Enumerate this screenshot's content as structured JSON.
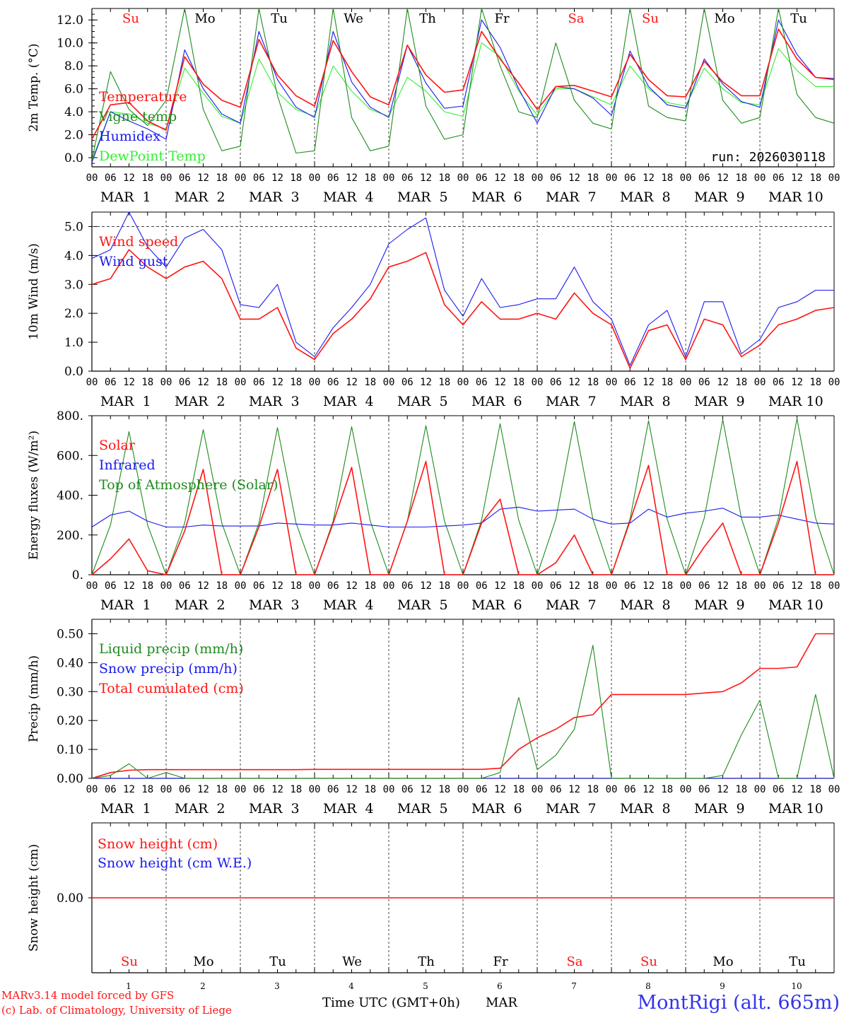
{
  "colors": {
    "red": "#ff1414",
    "green": "#1e8c1e",
    "blue": "#1a1aee",
    "lightgreen": "#33ee33",
    "grid": "#444444",
    "axis": "#000000",
    "footer_blue": "#3333ee"
  },
  "days": {
    "weekday_labels": [
      "Su",
      "Mo",
      "Tu",
      "We",
      "Th",
      "Fr",
      "Sa",
      "Su",
      "Mo",
      "Tu"
    ],
    "weekend_flags": [
      true,
      false,
      false,
      false,
      false,
      false,
      true,
      true,
      false,
      false
    ],
    "date_labels": [
      "MAR  1",
      "MAR  2",
      "MAR  3",
      "MAR  4",
      "MAR  5",
      "MAR  6",
      "MAR  7",
      "MAR  8",
      "MAR  9",
      "MAR 10"
    ],
    "day_numbers": [
      "1",
      "2",
      "3",
      "4",
      "5",
      "6",
      "7",
      "8",
      "9",
      "10"
    ],
    "hour_labels": [
      "00",
      "06",
      "12",
      "18"
    ],
    "final_hour_label": "00"
  },
  "footer": {
    "model": "MARv3.14 model forced by GFS",
    "lab": "(c) Lab. of Climatology, University of Liege",
    "axis_title": "Time UTC (GMT+0h)",
    "month": "MAR",
    "station": "MontRigi (alt. 665m)"
  },
  "chart_data": [
    {
      "type": "line",
      "ylabel": "2m Temp. (°C)",
      "ylim": [
        -0.8,
        13.0
      ],
      "yticks": [
        "0.0",
        "2.0",
        "4.0",
        "6.0",
        "8.0",
        "10.0",
        "12.0"
      ],
      "annotation": "run: 2026030118",
      "x": "hours since MAR 1 00 UTC, every 6 h",
      "series": [
        {
          "name": "Temperature",
          "color": "red",
          "values": [
            1.6,
            4.6,
            4.8,
            3.2,
            2.4,
            8.8,
            6.4,
            5.0,
            4.4,
            10.3,
            7.2,
            5.4,
            4.5,
            10.2,
            7.5,
            5.3,
            4.6,
            9.8,
            7.2,
            5.7,
            5.9,
            11.0,
            8.6,
            6.5,
            4.2,
            6.2,
            6.3,
            5.8,
            5.3,
            9.0,
            6.8,
            5.4,
            5.3,
            8.4,
            6.6,
            5.4,
            5.4,
            11.2,
            8.6,
            7.0,
            6.8
          ]
        },
        {
          "name": "Vigne temp",
          "color": "green",
          "values": [
            -0.2,
            7.5,
            4.2,
            2.8,
            5.0,
            13.0,
            4.2,
            0.6,
            1.0,
            13.0,
            5.4,
            0.4,
            0.6,
            13.0,
            3.5,
            0.6,
            1.0,
            13.0,
            4.5,
            1.6,
            2.0,
            13.0,
            8.0,
            4.0,
            3.5,
            10.0,
            5.0,
            3.0,
            2.5,
            13.0,
            4.5,
            3.5,
            3.2,
            13.0,
            5.0,
            3.0,
            3.5,
            13.0,
            5.5,
            3.5,
            3.0
          ]
        },
        {
          "name": "Humidex",
          "color": "blue",
          "values": [
            -0.4,
            4.0,
            3.2,
            2.5,
            1.6,
            9.4,
            6.0,
            3.8,
            3.0,
            11.0,
            6.8,
            4.4,
            3.5,
            11.0,
            6.6,
            4.4,
            3.5,
            9.8,
            6.5,
            4.3,
            4.5,
            12.0,
            9.6,
            6.0,
            3.0,
            6.2,
            6.0,
            5.2,
            3.7,
            9.3,
            6.2,
            4.6,
            4.3,
            8.6,
            6.4,
            4.9,
            4.4,
            12.0,
            9.0,
            7.0,
            6.9
          ]
        },
        {
          "name": "DewPoint Temp",
          "color": "lightgreen",
          "values": [
            -0.2,
            4.0,
            3.8,
            3.0,
            2.5,
            7.8,
            5.6,
            3.6,
            3.0,
            8.6,
            5.7,
            4.2,
            3.6,
            8.0,
            5.8,
            4.2,
            3.6,
            7.0,
            5.8,
            4.0,
            3.6,
            10.0,
            8.8,
            5.8,
            3.7,
            6.0,
            6.0,
            5.3,
            4.6,
            8.0,
            6.0,
            4.8,
            4.5,
            7.8,
            6.0,
            4.8,
            4.6,
            9.5,
            7.6,
            6.2,
            6.2
          ]
        }
      ]
    },
    {
      "type": "line",
      "ylabel": "10m Wind (m/s)",
      "ylim": [
        0.0,
        5.5
      ],
      "yticks": [
        "0.0",
        "1.0",
        "2.0",
        "3.0",
        "4.0",
        "5.0"
      ],
      "x": "hours since MAR 1 00 UTC, every 6 h",
      "series": [
        {
          "name": "Wind speed",
          "color": "red",
          "values": [
            3.0,
            3.2,
            4.2,
            3.6,
            3.2,
            3.6,
            3.8,
            3.2,
            1.8,
            1.8,
            2.2,
            0.8,
            0.4,
            1.3,
            1.8,
            2.5,
            3.6,
            3.8,
            4.1,
            2.3,
            1.6,
            2.4,
            1.8,
            1.8,
            2.0,
            1.8,
            2.7,
            2.0,
            1.6,
            0.1,
            1.4,
            1.6,
            0.4,
            1.8,
            1.6,
            0.5,
            0.9,
            1.6,
            1.8,
            2.1,
            2.2
          ]
        },
        {
          "name": "Wind gust",
          "color": "blue",
          "values": [
            3.9,
            4.2,
            5.5,
            4.3,
            3.6,
            4.6,
            4.9,
            4.2,
            2.3,
            2.2,
            3.0,
            1.0,
            0.5,
            1.5,
            2.2,
            3.0,
            4.4,
            4.9,
            5.3,
            2.8,
            1.9,
            3.2,
            2.2,
            2.3,
            2.5,
            2.5,
            3.6,
            2.4,
            1.8,
            0.2,
            1.6,
            2.1,
            0.5,
            2.4,
            2.4,
            0.6,
            1.1,
            2.2,
            2.4,
            2.8,
            2.8
          ]
        }
      ]
    },
    {
      "type": "line",
      "ylabel": "Energy fluxes (W/m²)",
      "ylim": [
        0,
        800
      ],
      "yticks": [
        "0.",
        "200.",
        "400.",
        "600.",
        "800."
      ],
      "x": "hours since MAR 1 00 UTC, every 6 h",
      "series": [
        {
          "name": "Solar",
          "color": "red",
          "values": [
            0,
            80,
            180,
            20,
            0,
            220,
            530,
            0,
            0,
            240,
            530,
            0,
            0,
            260,
            540,
            0,
            0,
            270,
            570,
            0,
            0,
            260,
            380,
            0,
            0,
            60,
            200,
            0,
            0,
            270,
            550,
            0,
            0,
            140,
            260,
            0,
            0,
            260,
            570,
            0,
            0
          ]
        },
        {
          "name": "Infrared",
          "color": "blue",
          "values": [
            240,
            300,
            320,
            270,
            240,
            240,
            250,
            245,
            245,
            245,
            260,
            255,
            250,
            250,
            260,
            250,
            240,
            240,
            240,
            245,
            250,
            260,
            330,
            340,
            320,
            325,
            330,
            280,
            255,
            260,
            330,
            290,
            310,
            320,
            335,
            290,
            290,
            300,
            280,
            260,
            255
          ]
        },
        {
          "name": "Top of Atmosphere (Solar)",
          "color": "green",
          "values": [
            0,
            250,
            720,
            250,
            0,
            260,
            730,
            260,
            0,
            260,
            740,
            260,
            0,
            270,
            745,
            270,
            0,
            270,
            750,
            270,
            0,
            275,
            760,
            275,
            0,
            280,
            770,
            280,
            0,
            280,
            775,
            280,
            0,
            285,
            780,
            285,
            0,
            285,
            785,
            285,
            0
          ]
        }
      ]
    },
    {
      "type": "line",
      "ylabel": "Precip (mm/h)",
      "ylim": [
        0,
        0.55
      ],
      "yticks": [
        "0.00",
        "0.10",
        "0.20",
        "0.30",
        "0.40",
        "0.50"
      ],
      "x": "hours since MAR 1 00 UTC, every 6 h",
      "series": [
        {
          "name": "Liquid precip (mm/h)",
          "color": "green",
          "values": [
            0,
            0.01,
            0.05,
            0,
            0.02,
            0,
            0,
            0,
            0,
            0,
            0,
            0,
            0,
            0,
            0,
            0,
            0,
            0,
            0,
            0,
            0,
            0,
            0.02,
            0.28,
            0.03,
            0.08,
            0.17,
            0.46,
            0,
            0,
            0,
            0,
            0,
            0,
            0.01,
            0.15,
            0.27,
            0,
            0,
            0.29,
            0
          ]
        },
        {
          "name": "Snow precip (mm/h)",
          "color": "blue",
          "values": [
            0,
            0,
            0,
            0,
            0,
            0,
            0,
            0,
            0,
            0,
            0,
            0,
            0,
            0,
            0,
            0,
            0,
            0,
            0,
            0,
            0,
            0,
            0,
            0,
            0,
            0,
            0,
            0,
            0,
            0,
            0,
            0,
            0,
            0,
            0,
            0,
            0,
            0,
            0,
            0,
            0
          ]
        },
        {
          "name": "Total cumulated (cm)",
          "color": "red",
          "values": [
            0,
            0.02,
            0.028,
            0.03,
            0.03,
            0.03,
            0.03,
            0.03,
            0.03,
            0.03,
            0.03,
            0.03,
            0.031,
            0.031,
            0.031,
            0.031,
            0.031,
            0.031,
            0.031,
            0.031,
            0.031,
            0.031,
            0.035,
            0.1,
            0.14,
            0.17,
            0.21,
            0.22,
            0.29,
            0.29,
            0.29,
            0.29,
            0.29,
            0.295,
            0.3,
            0.33,
            0.38,
            0.38,
            0.385,
            0.5,
            0.5
          ]
        }
      ]
    },
    {
      "type": "line",
      "ylabel": "Snow height (cm)",
      "ylim": [
        -1,
        1
      ],
      "yticks": [
        "0.00"
      ],
      "x": "hours since MAR 1 00 UTC, every 6 h",
      "series": [
        {
          "name": "Snow height (cm)",
          "color": "red",
          "values": [
            0,
            0,
            0,
            0,
            0,
            0,
            0,
            0,
            0,
            0,
            0,
            0,
            0,
            0,
            0,
            0,
            0,
            0,
            0,
            0,
            0,
            0,
            0,
            0,
            0,
            0,
            0,
            0,
            0,
            0,
            0,
            0,
            0,
            0,
            0,
            0,
            0,
            0,
            0,
            0,
            0
          ]
        },
        {
          "name": "Snow height (cm W.E.)",
          "color": "blue",
          "values": [
            0,
            0,
            0,
            0,
            0,
            0,
            0,
            0,
            0,
            0,
            0,
            0,
            0,
            0,
            0,
            0,
            0,
            0,
            0,
            0,
            0,
            0,
            0,
            0,
            0,
            0,
            0,
            0,
            0,
            0,
            0,
            0,
            0,
            0,
            0,
            0,
            0,
            0,
            0,
            0,
            0
          ]
        }
      ]
    }
  ]
}
